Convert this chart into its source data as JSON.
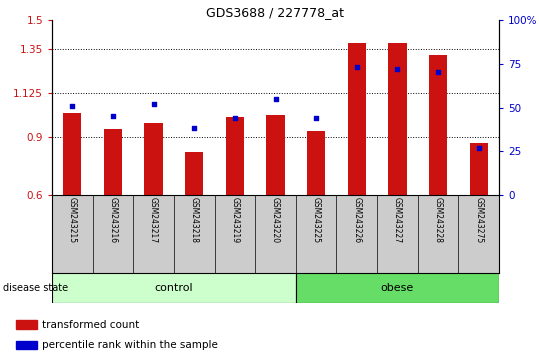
{
  "title": "GDS3688 / 227778_at",
  "samples": [
    "GSM243215",
    "GSM243216",
    "GSM243217",
    "GSM243218",
    "GSM243219",
    "GSM243220",
    "GSM243225",
    "GSM243226",
    "GSM243227",
    "GSM243228",
    "GSM243275"
  ],
  "transformed_count": [
    1.02,
    0.94,
    0.97,
    0.82,
    1.0,
    1.01,
    0.93,
    1.38,
    1.38,
    1.32,
    0.87
  ],
  "percentile_rank": [
    51,
    45,
    52,
    38,
    44,
    55,
    44,
    73,
    72,
    70,
    27
  ],
  "ylim_left": [
    0.6,
    1.5
  ],
  "ylim_right": [
    0,
    100
  ],
  "yticks_left": [
    0.6,
    0.9,
    1.125,
    1.35,
    1.5
  ],
  "ytick_labels_left": [
    "0.6",
    "0.9",
    "1.125",
    "1.35",
    "1.5"
  ],
  "yticks_right": [
    0,
    25,
    50,
    75,
    100
  ],
  "ytick_labels_right": [
    "0",
    "25",
    "50",
    "75",
    "100%"
  ],
  "bar_color": "#cc1111",
  "dot_color": "#0000cc",
  "bar_width": 0.45,
  "grid_yticks": [
    0.9,
    1.125,
    1.35
  ],
  "n_control": 6,
  "n_obese": 5,
  "control_label": "control",
  "obese_label": "obese",
  "disease_state_label": "disease state",
  "legend_bar_label": "transformed count",
  "legend_dot_label": "percentile rank within the sample",
  "control_color": "#ccffcc",
  "obese_color": "#66dd66",
  "label_area_bg": "#cccccc"
}
